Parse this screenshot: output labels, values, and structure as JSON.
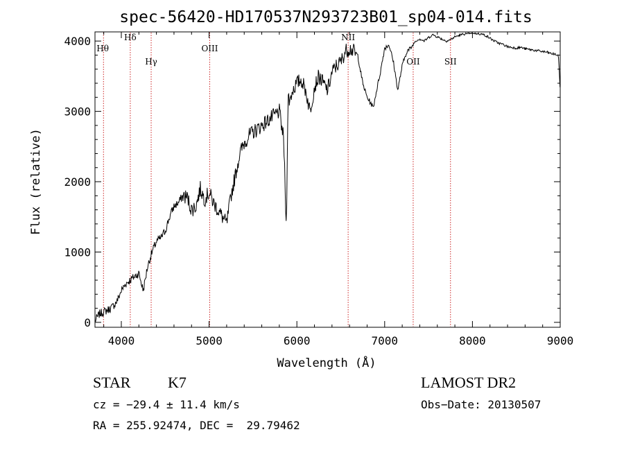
{
  "chart_data": {
    "type": "line",
    "title": "spec-56420-HD170537N293723B01_sp04-014.fits",
    "xlabel": "Wavelength (Å)",
    "ylabel": "Flux (relative)",
    "xlim": [
      3700,
      9000
    ],
    "ylim": [
      -70,
      4130
    ],
    "x_ticks": [
      4000,
      5000,
      6000,
      7000,
      8000,
      9000
    ],
    "y_ticks": [
      0,
      1000,
      2000,
      3000,
      4000
    ],
    "grid": false,
    "line_color": "#000000",
    "marker_color": "#cc2222",
    "lines": [
      {
        "label": "Hθ",
        "x": 3797
      },
      {
        "label": "Hδ",
        "x": 4102
      },
      {
        "label": "Hγ",
        "x": 4340
      },
      {
        "label": "OIII",
        "x": 5007
      },
      {
        "label": "NII",
        "x": 6584
      },
      {
        "label": "OII",
        "x": 7325
      },
      {
        "label": "SII",
        "x": 7750
      }
    ],
    "series": [
      {
        "x": [
          3700,
          3750,
          3800,
          3850,
          3900,
          3950,
          4000,
          4050,
          4100,
          4150,
          4200,
          4250,
          4300,
          4350,
          4400,
          4450,
          4500,
          4550,
          4600,
          4650,
          4700,
          4750,
          4800,
          4850,
          4900,
          4950,
          5000,
          5050,
          5100,
          5150,
          5200,
          5250,
          5300,
          5350,
          5400,
          5450,
          5500,
          5550,
          5600,
          5650,
          5700,
          5750,
          5800,
          5850,
          5880,
          5890,
          5900,
          5920,
          5950,
          6000,
          6050,
          6100,
          6150,
          6200,
          6250,
          6300,
          6350,
          6400,
          6450,
          6500,
          6550,
          6600,
          6650,
          6700,
          6750,
          6800,
          6850,
          6870,
          6900,
          6950,
          7000,
          7050,
          7100,
          7150,
          7200,
          7250,
          7300,
          7350,
          7400,
          7450,
          7500,
          7550,
          7600,
          7650,
          7700,
          7750,
          7800,
          7850,
          7900,
          7950,
          8000,
          8050,
          8100,
          8150,
          8200,
          8250,
          8300,
          8350,
          8400,
          8450,
          8500,
          8550,
          8600,
          8650,
          8700,
          8750,
          8800,
          8850,
          8900,
          8950,
          8980,
          9000
        ],
        "y": [
          20,
          120,
          150,
          180,
          220,
          300,
          450,
          550,
          600,
          650,
          700,
          450,
          800,
          1000,
          1150,
          1200,
          1300,
          1500,
          1650,
          1700,
          1800,
          1780,
          1600,
          1650,
          1900,
          1750,
          1850,
          1700,
          1600,
          1500,
          1400,
          1800,
          2100,
          2400,
          2550,
          2650,
          2700,
          2750,
          2800,
          2850,
          2900,
          2950,
          3000,
          2600,
          1300,
          2400,
          3200,
          3150,
          3300,
          3400,
          3450,
          3300,
          3000,
          3350,
          3500,
          3400,
          3300,
          3550,
          3650,
          3700,
          3850,
          3900,
          3850,
          3750,
          3400,
          3200,
          3100,
          3050,
          3250,
          3550,
          3900,
          3950,
          3700,
          3300,
          3650,
          3850,
          3900,
          4000,
          4030,
          4000,
          4050,
          4090,
          4060,
          4030,
          4000,
          4020,
          4060,
          4080,
          4100,
          4110,
          4120,
          4110,
          4100,
          4080,
          4040,
          4000,
          3970,
          3950,
          3920,
          3910,
          3900,
          3910,
          3890,
          3880,
          3870,
          3860,
          3850,
          3840,
          3820,
          3810,
          3780,
          3300
        ]
      }
    ]
  },
  "footer": {
    "object_type": "STAR",
    "subclass": "K7",
    "cz": "cz = −29.4 ± 11.4 km/s",
    "radec": "RA = 255.92474, DEC =  29.79462",
    "survey": "LAMOST DR2",
    "obs_date": "Obs−Date: 20130507"
  }
}
